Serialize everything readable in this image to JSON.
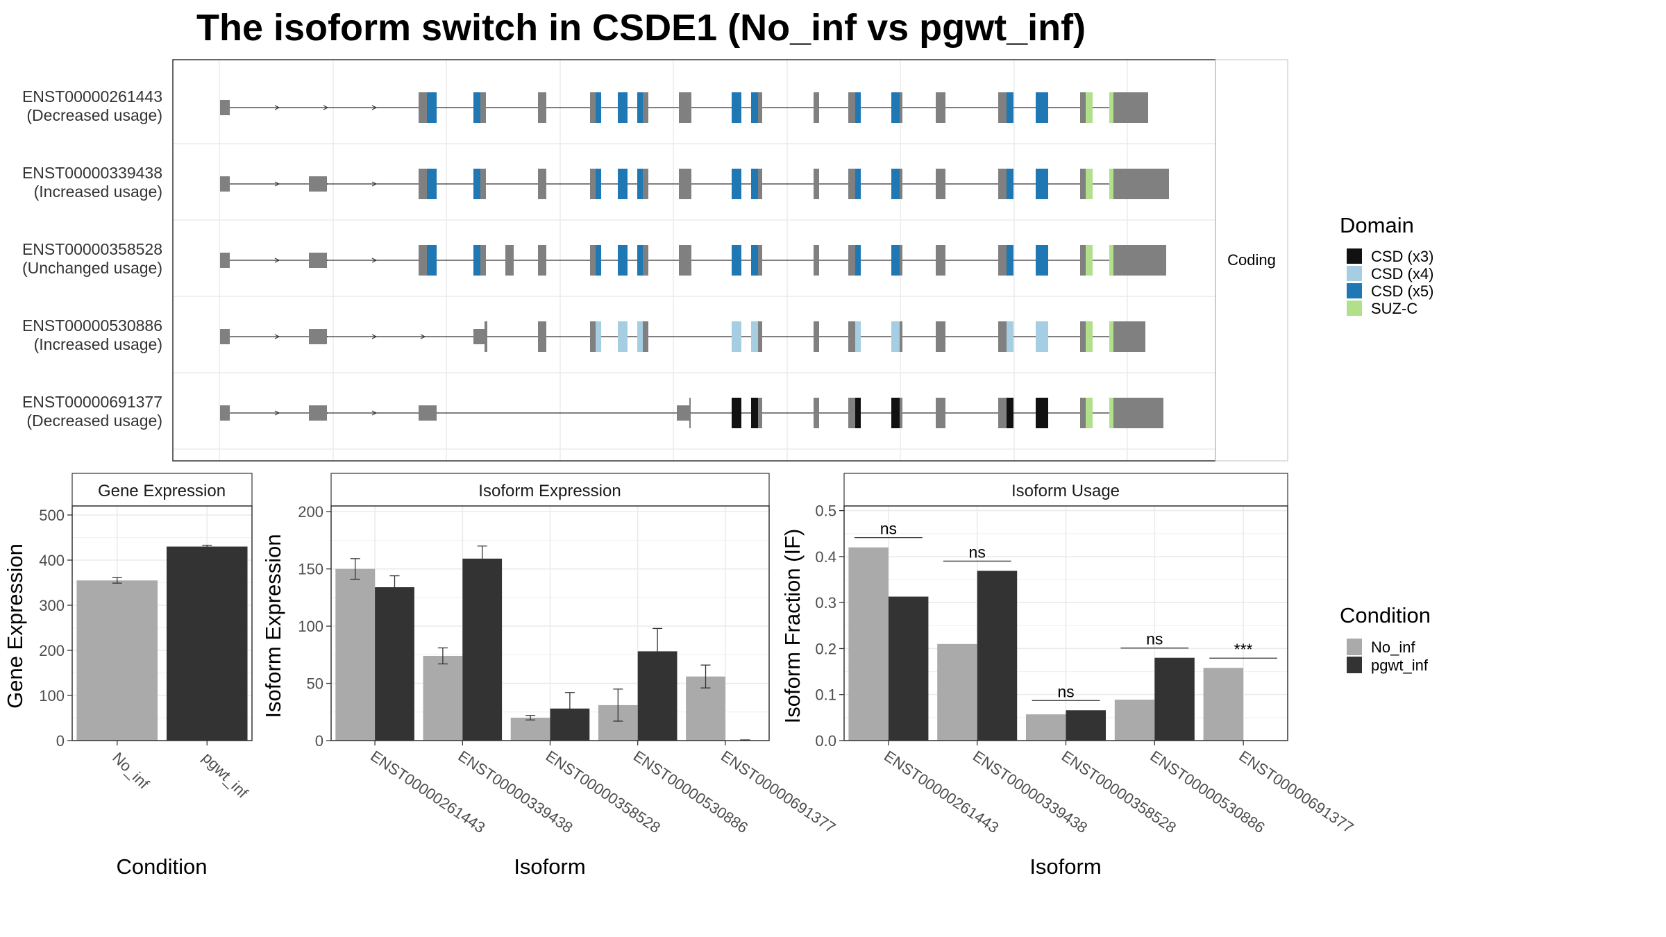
{
  "title": "The isoform switch in CSDE1 (No_inf vs pgwt_inf)",
  "colors": {
    "exon": "#808080",
    "No_inf": "#aaaaaa",
    "pgwt_inf": "#333333",
    "CSD (x3)": "#111111",
    "CSD (x4)": "#a6cee3",
    "CSD (x5)": "#1f78b4",
    "SUZ-C": "#b2df8a"
  },
  "structure": {
    "facet_label": "Coding",
    "transcripts": [
      {
        "id": "ENST00000261443",
        "status": "(Decreased usage)"
      },
      {
        "id": "ENST00000339438",
        "status": "(Increased usage)"
      },
      {
        "id": "ENST00000358528",
        "status": "(Unchanged usage)"
      },
      {
        "id": "ENST00000530886",
        "status": "(Increased usage)"
      },
      {
        "id": "ENST00000691377",
        "status": "(Decreased usage)"
      }
    ]
  },
  "domain_legend": {
    "title": "Domain",
    "items": [
      "CSD (x3)",
      "CSD (x4)",
      "CSD (x5)",
      "SUZ-C"
    ]
  },
  "condition_legend": {
    "title": "Condition",
    "items": [
      "No_inf",
      "pgwt_inf"
    ]
  },
  "chart_data": [
    {
      "type": "bar",
      "title": "Gene Expression",
      "xlabel": "Condition",
      "ylabel": "Gene Expression",
      "ylim": [
        0,
        520
      ],
      "yticks": [
        0,
        100,
        200,
        300,
        400,
        500
      ],
      "categories": [
        "No_inf",
        "pgwt_inf"
      ],
      "values": [
        355,
        430
      ],
      "errors": [
        6,
        3
      ],
      "grid": true
    },
    {
      "type": "bar",
      "title": "Isoform Expression",
      "xlabel": "Isoform",
      "ylabel": "Isoform Expression",
      "ylim": [
        0,
        205
      ],
      "yticks": [
        0,
        50,
        100,
        150,
        200
      ],
      "categories": [
        "ENST00000261443",
        "ENST00000339438",
        "ENST00000358528",
        "ENST00000530886",
        "ENST00000691377"
      ],
      "series": [
        {
          "name": "No_inf",
          "values": [
            150,
            74,
            20,
            31,
            56
          ],
          "errors": [
            9,
            7,
            2,
            14,
            10
          ]
        },
        {
          "name": "pgwt_inf",
          "values": [
            134,
            159,
            28,
            78,
            0
          ],
          "errors": [
            10,
            11,
            14,
            20,
            0
          ]
        }
      ],
      "grid": true
    },
    {
      "type": "bar",
      "title": "Isoform Usage",
      "xlabel": "Isoform",
      "ylabel": "Isoform Fraction (IF)",
      "ylim": [
        0,
        0.51
      ],
      "yticks": [
        0.0,
        0.1,
        0.2,
        0.3,
        0.4,
        0.5
      ],
      "categories": [
        "ENST00000261443",
        "ENST00000339438",
        "ENST00000358528",
        "ENST00000530886",
        "ENST00000691377"
      ],
      "series": [
        {
          "name": "No_inf",
          "values": [
            0.42,
            0.21,
            0.057,
            0.089,
            0.158
          ]
        },
        {
          "name": "pgwt_inf",
          "values": [
            0.313,
            0.369,
            0.066,
            0.18,
            0.0
          ]
        }
      ],
      "significance": [
        "ns",
        "ns",
        "ns",
        "ns",
        "***"
      ],
      "grid": true
    }
  ]
}
